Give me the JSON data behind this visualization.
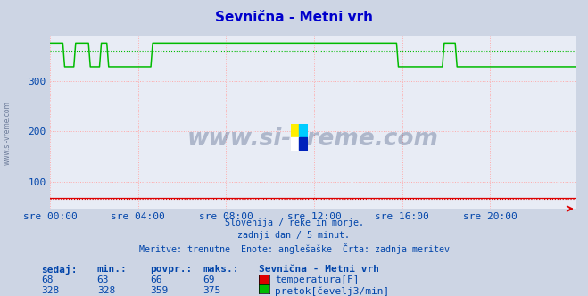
{
  "title": "Sevnična - Metni vrh",
  "title_color": "#0000cc",
  "bg_color": "#cdd5e4",
  "plot_bg_color": "#e8ecf5",
  "grid_color": "#ffaaaa",
  "watermark": "www.si-vreme.com",
  "watermark_color": "#1a3060",
  "subtitle_lines": [
    "Slovenija / reke in morje.",
    "zadnji dan / 5 minut.",
    "Meritve: trenutne  Enote: anglešaške  Črta: zadnja meritev"
  ],
  "xtick_labels": [
    "sre 00:00",
    "sre 04:00",
    "sre 08:00",
    "sre 12:00",
    "sre 16:00",
    "sre 20:00"
  ],
  "xtick_positions": [
    0,
    48,
    96,
    144,
    192,
    240
  ],
  "ytick_positions": [
    100,
    200,
    300
  ],
  "ylim": [
    47,
    390
  ],
  "xlim": [
    0,
    287
  ],
  "total_points": 288,
  "temp_color": "#dd0000",
  "flow_color": "#00bb00",
  "temp_avg": 66,
  "flow_avg": 359,
  "temp_sedaj": 68,
  "temp_min": 63,
  "temp_povpr": 66,
  "temp_maks": 69,
  "flow_sedaj": 328,
  "flow_min": 328,
  "flow_povpr": 359,
  "flow_maks": 375,
  "legend_label1": "temperatura[F]",
  "legend_label2": "pretok[čevelj3/min]",
  "legend_station": "Sevnična - Metni vrh",
  "table_headers": [
    "sedaj:",
    "min.:",
    "povpr.:",
    "maks.:"
  ],
  "footer_color": "#0044aa",
  "left_label": "www.si-vreme.com"
}
